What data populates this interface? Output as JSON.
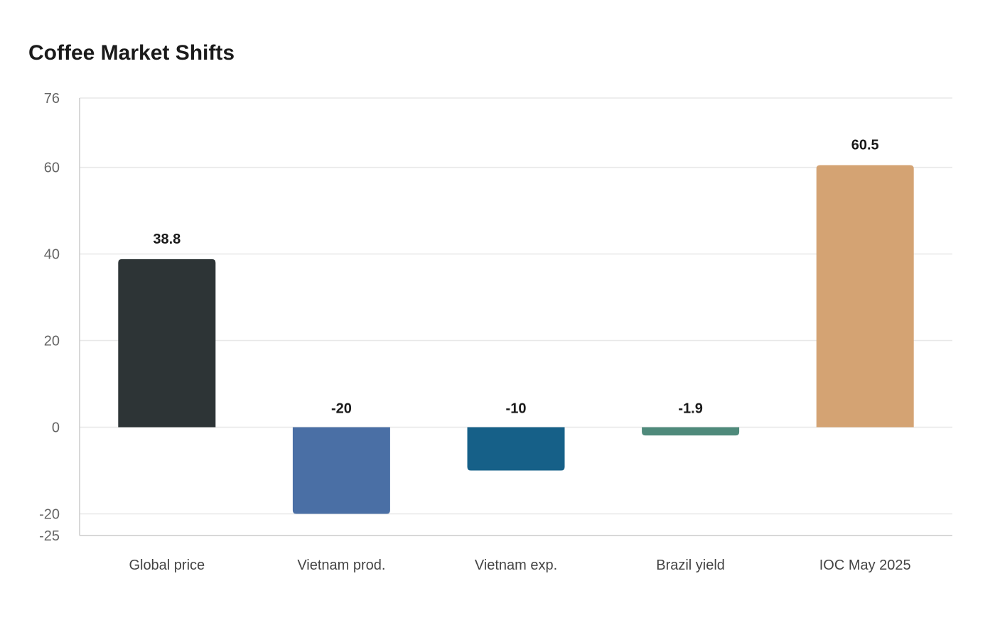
{
  "chart_data": {
    "type": "bar",
    "title": "Coffee Market Shifts",
    "xlabel": "",
    "ylabel": "",
    "categories": [
      "Global price",
      "Vietnam prod.",
      "Vietnam exp.",
      "Brazil yield",
      "IOC May 2025"
    ],
    "values": [
      38.8,
      -20,
      -10,
      -1.9,
      60.5
    ],
    "value_labels": [
      "38.8",
      "-20",
      "-10",
      "-1.9",
      "60.5"
    ],
    "colors": [
      "#2d3436",
      "#4a6fa5",
      "#166088",
      "#4f8a7b",
      "#d4a373"
    ],
    "ylim": [
      -25,
      76
    ],
    "yticks": [
      -25,
      -20,
      0,
      20,
      40,
      60,
      76
    ],
    "grid": true,
    "legend": "none"
  }
}
